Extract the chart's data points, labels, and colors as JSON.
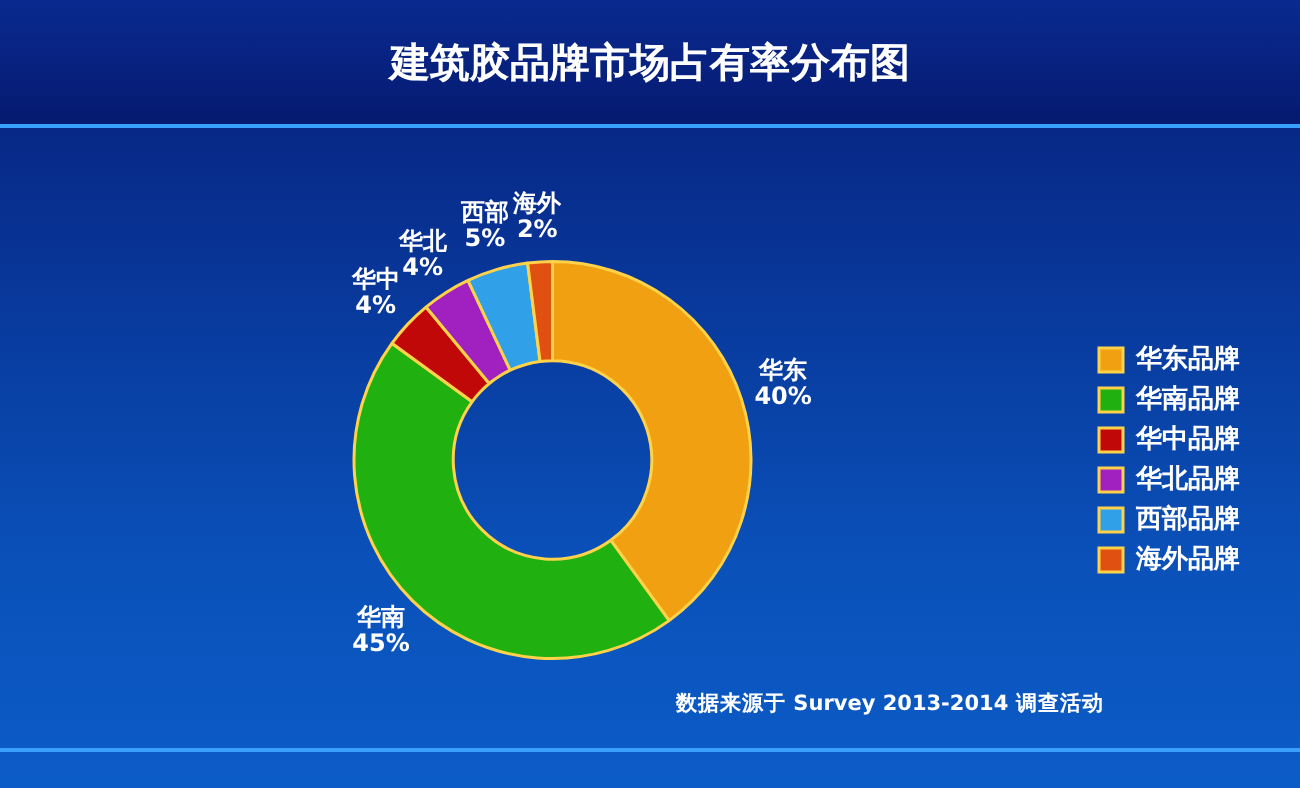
{
  "chart_data": {
    "type": "donut",
    "title": "建筑胶品牌市场占有率分布图",
    "categories": [
      "华东品牌",
      "华南品牌",
      "华中品牌",
      "华北品牌",
      "西部品牌",
      "海外品牌"
    ],
    "values": [
      40,
      45,
      4,
      4,
      5,
      2
    ],
    "colors": [
      "#f0a010",
      "#20b010",
      "#c00808",
      "#a020c0",
      "#30a0e8",
      "#e05010"
    ],
    "value_labels": [
      "华东\n40%",
      "华南\n45%",
      "华中\n4%",
      "华北\n4%",
      "西部\n5%",
      "海外\n2%"
    ],
    "legend": "right",
    "annotations": [
      "数据来源于 Survey 2013-2014 调查活动"
    ]
  }
}
